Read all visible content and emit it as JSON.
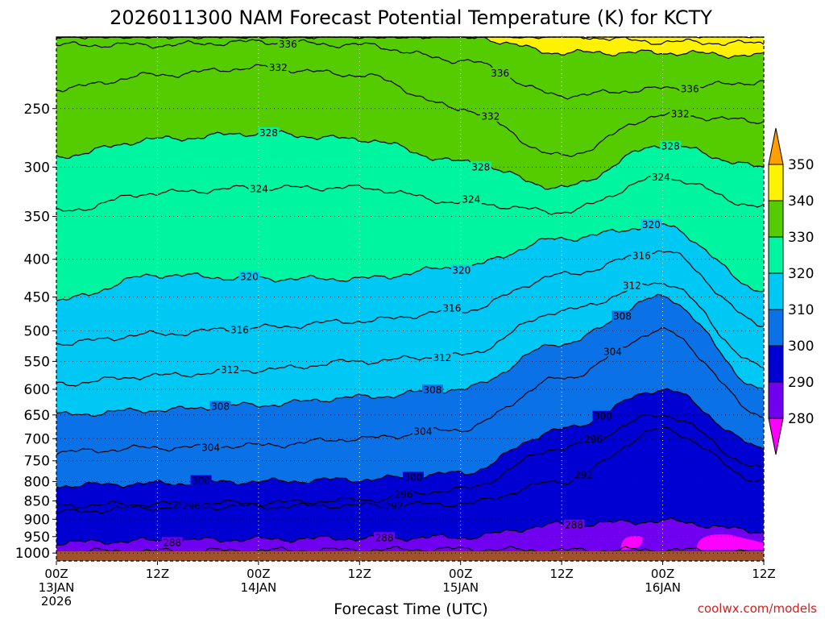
{
  "chart_data": {
    "type": "heatmap",
    "title": "2026011300 NAM Forecast Potential Temperature (K) for KCTY",
    "xlabel": "Forecast Time (UTC)",
    "ylabel": "",
    "credit": "coolwx.com/models",
    "x_ticks": [
      {
        "line1": "00Z",
        "line2": "13JAN",
        "line3": "2026",
        "hour": 0
      },
      {
        "line1": "12Z",
        "line2": "",
        "line3": "",
        "hour": 12
      },
      {
        "line1": "00Z",
        "line2": "14JAN",
        "line3": "",
        "hour": 24
      },
      {
        "line1": "12Z",
        "line2": "",
        "line3": "",
        "hour": 36
      },
      {
        "line1": "00Z",
        "line2": "15JAN",
        "line3": "",
        "hour": 48
      },
      {
        "line1": "12Z",
        "line2": "",
        "line3": "",
        "hour": 60
      },
      {
        "line1": "00Z",
        "line2": "16JAN",
        "line3": "",
        "hour": 72
      },
      {
        "line1": "12Z",
        "line2": "",
        "line3": "",
        "hour": 84
      }
    ],
    "xlim": [
      0,
      84
    ],
    "y_ticks": [
      "250",
      "300",
      "350",
      "400",
      "450",
      "500",
      "550",
      "600",
      "650",
      "700",
      "750",
      "800",
      "850",
      "900",
      "950",
      "1000"
    ],
    "ylim": [
      1025,
      200
    ],
    "y_scale": "log",
    "colorbar": {
      "ticks": [
        "350",
        "340",
        "330",
        "320",
        "310",
        "300",
        "290",
        "280"
      ],
      "bins": [
        {
          "range": [
            340,
            350
          ],
          "color": "#fff200"
        },
        {
          "range": [
            330,
            340
          ],
          "color": "#55cc00"
        },
        {
          "range": [
            320,
            330
          ],
          "color": "#00f5a0"
        },
        {
          "range": [
            310,
            320
          ],
          "color": "#00c8f5"
        },
        {
          "range": [
            300,
            310
          ],
          "color": "#0a72e6"
        },
        {
          "range": [
            290,
            300
          ],
          "color": "#0000d2"
        },
        {
          "range": [
            280,
            290
          ],
          "color": "#7200f0"
        }
      ],
      "over_color": "#ffa000",
      "under_color": "#ff00ff"
    },
    "contour_interval_K": 2,
    "series": [
      {
        "theta": 284,
        "p": [
          994,
          994,
          992,
          990,
          988,
          992,
          990,
          1000
        ],
        "label": "284"
      },
      {
        "theta": 288,
        "p": [
          968,
          962,
          958,
          955,
          952,
          915,
          905,
          935
        ],
        "label": "288"
      },
      {
        "theta": 292,
        "p": [
          880,
          868,
          865,
          862,
          858,
          800,
          680,
          800
        ],
        "label": "292"
      },
      {
        "theta": 296,
        "p": [
          862,
          858,
          855,
          848,
          820,
          720,
          650,
          770
        ],
        "label": "296"
      },
      {
        "theta": 300,
        "p": [
          810,
          805,
          800,
          795,
          780,
          680,
          600,
          720
        ],
        "label": "300"
      },
      {
        "theta": 304,
        "p": [
          730,
          720,
          715,
          700,
          680,
          580,
          500,
          650
        ],
        "label": "304"
      },
      {
        "theta": 308,
        "p": [
          650,
          640,
          630,
          615,
          600,
          520,
          450,
          600
        ],
        "label": "308"
      },
      {
        "theta": 312,
        "p": [
          590,
          575,
          565,
          550,
          540,
          470,
          430,
          560
        ],
        "label": "312"
      },
      {
        "theta": 316,
        "p": [
          520,
          505,
          495,
          485,
          470,
          420,
          390,
          490
        ],
        "label": "316"
      },
      {
        "theta": 320,
        "p": [
          455,
          420,
          425,
          425,
          410,
          375,
          360,
          440
        ],
        "label": "320"
      },
      {
        "theta": 324,
        "p": [
          345,
          325,
          320,
          320,
          335,
          345,
          310,
          340
        ],
        "label": "324"
      },
      {
        "theta": 328,
        "p": [
          290,
          275,
          270,
          275,
          295,
          320,
          280,
          300
        ],
        "label": "328"
      },
      {
        "theta": 332,
        "p": [
          235,
          225,
          220,
          225,
          250,
          290,
          255,
          260
        ],
        "label": "332"
      },
      {
        "theta": 336,
        "p": [
          205,
          205,
          203,
          205,
          215,
          240,
          235,
          230
        ],
        "label": "336"
      },
      {
        "theta": 340,
        "p": [
          199,
          199,
          199,
          199,
          199,
          210,
          210,
          212
        ],
        "label": ""
      },
      {
        "theta": 344,
        "p": [
          199,
          199,
          199,
          199,
          199,
          199,
          203,
          204
        ],
        "label": ""
      },
      {
        "theta": 348,
        "p": [
          199,
          199,
          199,
          199,
          199,
          199,
          198,
          199
        ],
        "label": ""
      }
    ],
    "theta_min": 280,
    "theta_max": 352,
    "terrain_color": "#a0522d"
  }
}
